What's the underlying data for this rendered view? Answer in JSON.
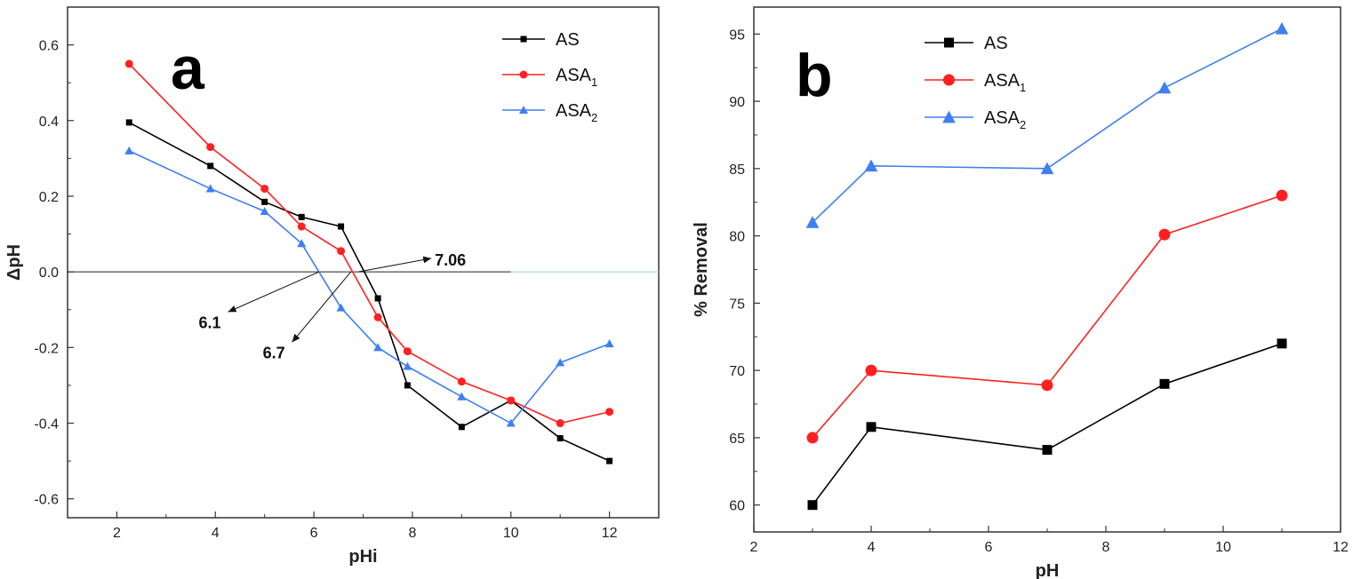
{
  "colors": {
    "AS": "#000000",
    "ASA1": "#ff2020",
    "ASA2": "#3f7ff0",
    "axis": "#333333"
  },
  "chart_data": [
    {
      "panel_label": "a",
      "type": "line",
      "xlabel": "pHi",
      "ylabel": "ΔpH",
      "xlim": [
        1,
        13
      ],
      "ylim": [
        -0.65,
        0.7
      ],
      "x_ticks": [
        2,
        4,
        6,
        8,
        10,
        12
      ],
      "y_ticks": [
        -0.6,
        -0.4,
        -0.2,
        0.0,
        0.2,
        0.4,
        0.6
      ],
      "y_tick_labels": [
        "-0.6",
        "-0.4",
        "-0.2",
        "0.0",
        "0.2",
        "0.4",
        "0.6"
      ],
      "zero_line": true,
      "legend_position": "top-right",
      "series": [
        {
          "name": "AS",
          "sub": "",
          "marker": "square",
          "color_key": "AS",
          "x": [
            2.25,
            3.9,
            5.0,
            5.75,
            6.55,
            7.3,
            7.9,
            9.0,
            10.0,
            11.0,
            12.0
          ],
          "y": [
            0.395,
            0.28,
            0.185,
            0.145,
            0.12,
            -0.07,
            -0.3,
            -0.41,
            -0.34,
            -0.44,
            -0.5
          ]
        },
        {
          "name": "ASA",
          "sub": "1",
          "marker": "circle",
          "color_key": "ASA1",
          "x": [
            2.25,
            3.9,
            5.0,
            5.75,
            6.55,
            7.3,
            7.9,
            9.0,
            10.0,
            11.0,
            12.0
          ],
          "y": [
            0.55,
            0.33,
            0.22,
            0.12,
            0.055,
            -0.12,
            -0.21,
            -0.29,
            -0.34,
            -0.4,
            -0.37
          ]
        },
        {
          "name": "ASA",
          "sub": "2",
          "marker": "triangle",
          "color_key": "ASA2",
          "x": [
            2.25,
            3.9,
            5.0,
            5.75,
            6.55,
            7.3,
            7.9,
            9.0,
            10.0,
            11.0,
            12.0
          ],
          "y": [
            0.32,
            0.22,
            0.16,
            0.075,
            -0.095,
            -0.2,
            -0.25,
            -0.33,
            -0.4,
            -0.24,
            -0.19
          ]
        }
      ],
      "annotations": [
        {
          "text": "7.06",
          "point": [
            6.9,
            0.0
          ],
          "label_at": [
            8.6,
            0.05
          ]
        },
        {
          "text": "6.1",
          "point": [
            6.1,
            0.0
          ],
          "label_at": [
            4.15,
            -0.12
          ]
        },
        {
          "text": "6.7",
          "point": [
            6.75,
            0.0
          ],
          "label_at": [
            5.45,
            -0.2
          ]
        }
      ]
    },
    {
      "panel_label": "b",
      "type": "line",
      "xlabel": "pH",
      "ylabel": "% Removal",
      "xlim": [
        2,
        12
      ],
      "ylim": [
        58,
        97
      ],
      "x_ticks": [
        2,
        4,
        6,
        8,
        10,
        12
      ],
      "y_ticks": [
        60,
        65,
        70,
        75,
        80,
        85,
        90,
        95
      ],
      "y_tick_labels": [
        "60",
        "65",
        "70",
        "75",
        "80",
        "85",
        "90",
        "95"
      ],
      "zero_line": false,
      "legend_position": "top-left",
      "series": [
        {
          "name": "AS",
          "sub": "",
          "marker": "square",
          "color_key": "AS",
          "x": [
            3,
            4,
            7,
            9,
            11
          ],
          "y": [
            60,
            65.8,
            64.1,
            69,
            72
          ]
        },
        {
          "name": "ASA",
          "sub": "1",
          "marker": "circle",
          "color_key": "ASA1",
          "x": [
            3,
            4,
            7,
            9,
            11
          ],
          "y": [
            65,
            70,
            68.9,
            80.1,
            83
          ]
        },
        {
          "name": "ASA",
          "sub": "2",
          "marker": "triangle",
          "color_key": "ASA2",
          "x": [
            3,
            4,
            7,
            9,
            11
          ],
          "y": [
            81,
            85.2,
            85,
            91,
            95.4
          ]
        }
      ],
      "annotations": []
    }
  ]
}
